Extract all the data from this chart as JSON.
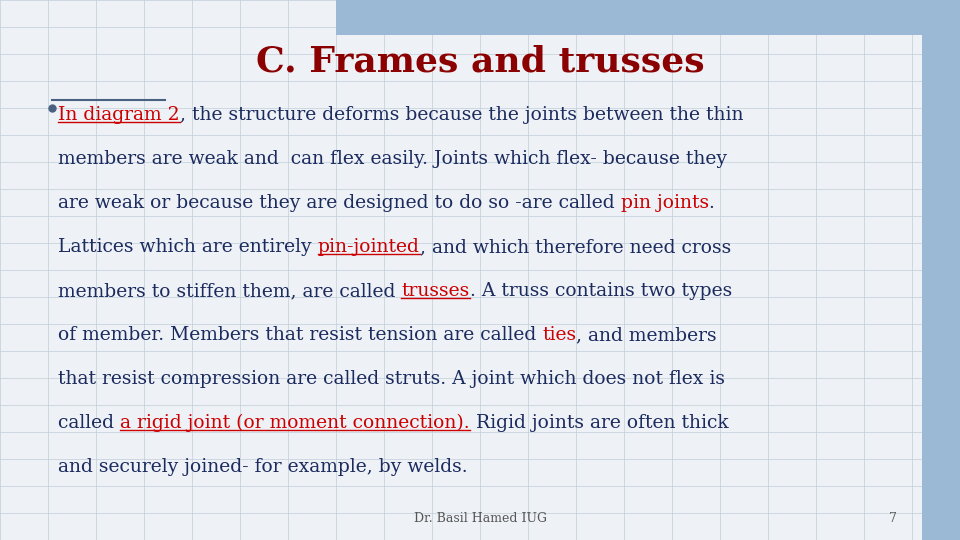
{
  "title": "C. Frames and trusses",
  "title_color": "#8B0000",
  "title_fontsize": 26,
  "title_fontweight": "bold",
  "background_color": "#EEF2F7",
  "grid_color": "#C0CDD8",
  "top_bar_color": "#9BB8D4",
  "right_bar_color": "#9BB8D4",
  "footer_text": "Dr. Basil Hamed IUG",
  "footer_page": "7",
  "footer_fontsize": 9,
  "footer_color": "#555555",
  "body_color": "#1C2B5E",
  "red_color": "#CC0000",
  "body_fontsize": 13.5,
  "line_segments": [
    [
      [
        "In diagram 2",
        "#CC0000",
        true
      ],
      [
        ", the structure deforms because the joints between the thin",
        "#1C2B5E",
        false
      ]
    ],
    [
      [
        "members are weak and  can flex easily. Joints which flex- because they",
        "#1C2B5E",
        false
      ]
    ],
    [
      [
        "are weak or because they are designed to do so -are called ",
        "#1C2B5E",
        false
      ],
      [
        "pin joints",
        "#CC0000",
        false
      ],
      [
        ".",
        "#1C2B5E",
        false
      ]
    ],
    [
      [
        "Lattices which are entirely ",
        "#1C2B5E",
        false
      ],
      [
        "pin-jointed",
        "#CC0000",
        true
      ],
      [
        ", and which therefore need cross",
        "#1C2B5E",
        false
      ]
    ],
    [
      [
        "members to stiffen them, are called ",
        "#1C2B5E",
        false
      ],
      [
        "trusses",
        "#CC0000",
        true
      ],
      [
        ". A truss contains two types",
        "#1C2B5E",
        false
      ]
    ],
    [
      [
        "of member. Members that resist tension are called ",
        "#1C2B5E",
        false
      ],
      [
        "ties",
        "#CC0000",
        false
      ],
      [
        ", and members",
        "#1C2B5E",
        false
      ]
    ],
    [
      [
        "that resist compression are called struts. A joint which does not flex is",
        "#1C2B5E",
        false
      ]
    ],
    [
      [
        "called ",
        "#1C2B5E",
        false
      ],
      [
        "a rigid joint (or moment connection).",
        "#CC0000",
        true
      ],
      [
        " Rigid joints are often thick",
        "#1C2B5E",
        false
      ]
    ],
    [
      [
        "and securely joined- for example, by welds.",
        "#1C2B5E",
        false
      ]
    ]
  ]
}
